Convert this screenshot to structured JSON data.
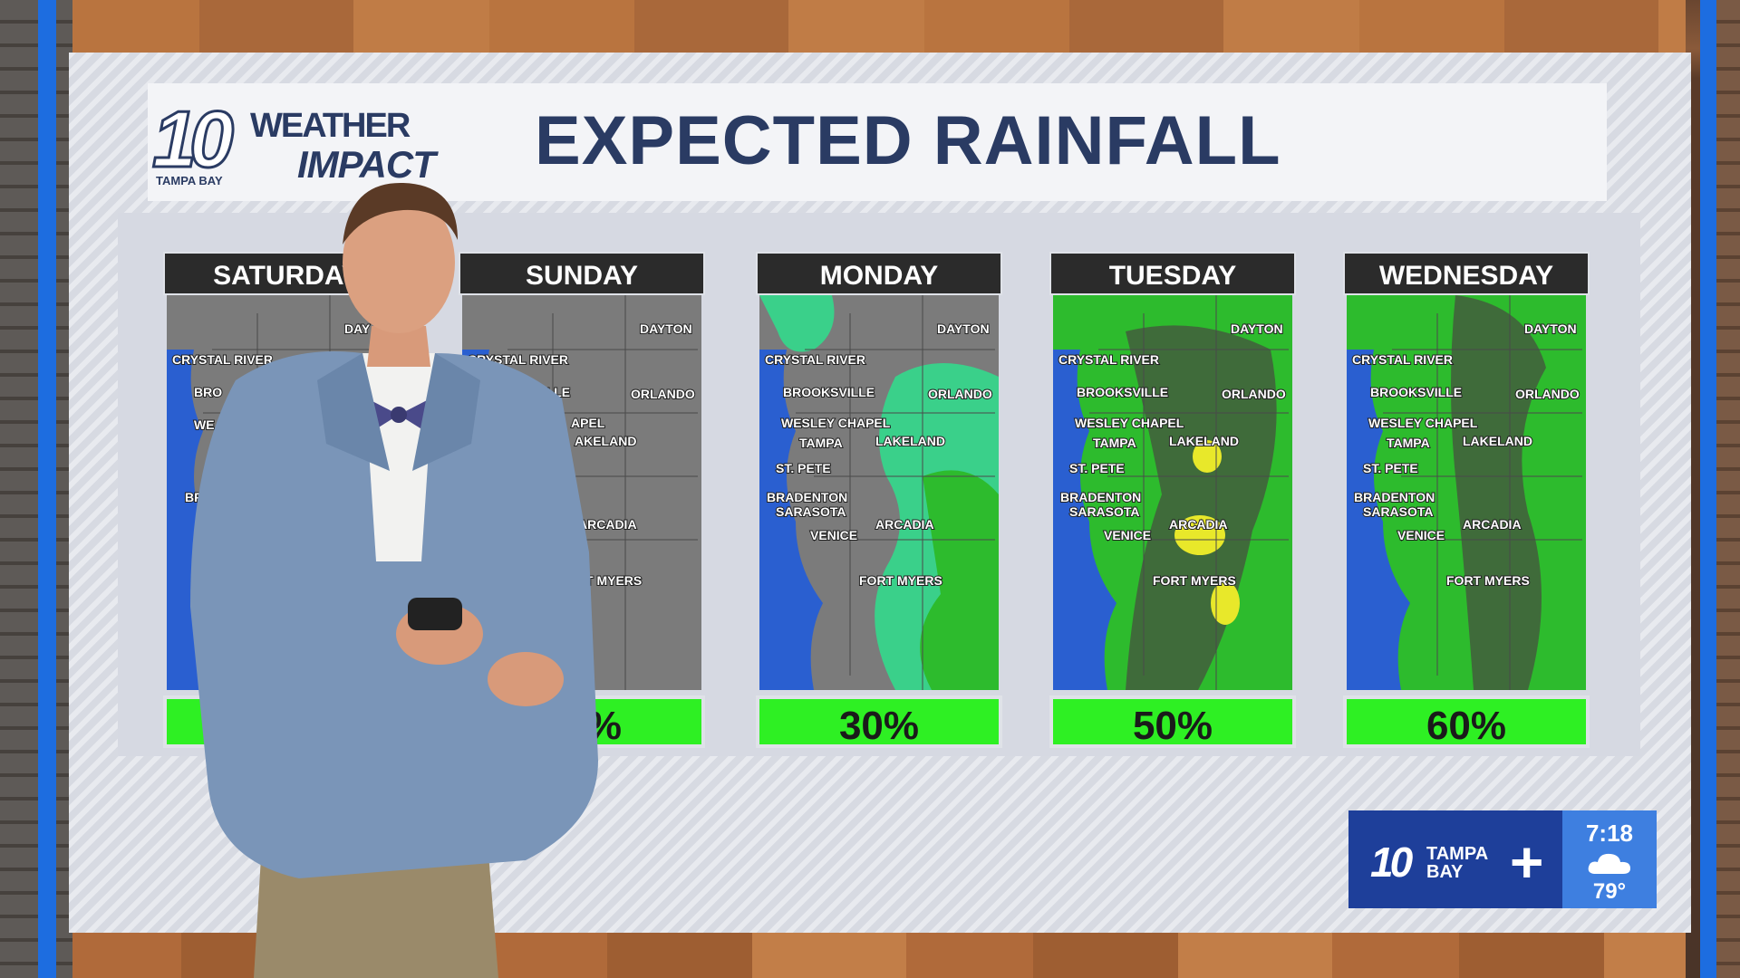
{
  "header": {
    "logo_number": "10",
    "logo_line1": "WEATHER",
    "logo_line2": "IMPACT",
    "logo_station": "TAMPA BAY",
    "title": "EXPECTED RAINFALL"
  },
  "days": [
    {
      "day": "SATURDAY",
      "chance": "",
      "cities": [
        "CRYSTAL RIVER",
        "DAY",
        "BRO",
        "WE",
        "BR"
      ]
    },
    {
      "day": "SUNDAY",
      "chance": "10%",
      "cities": [
        "DAYTON",
        "CRYSTAL RIVER",
        "KSVILLE",
        "ORLANDO",
        "APEL",
        "AKELAND",
        "ARCADIA",
        "T MYERS"
      ]
    },
    {
      "day": "MONDAY",
      "chance": "30%",
      "cities": [
        "DAYTON",
        "CRYSTAL RIVER",
        "BROOKSVILLE",
        "ORLANDO",
        "WESLEY CHAPEL",
        "TAMPA",
        "LAKELAND",
        "ST. PETE",
        "BRADENTON",
        "SARASOTA",
        "ARCADIA",
        "VENICE",
        "FORT MYERS"
      ]
    },
    {
      "day": "TUESDAY",
      "chance": "50%",
      "cities": [
        "DAYTON",
        "CRYSTAL RIVER",
        "BROOKSVILLE",
        "ORLANDO",
        "WESLEY CHAPEL",
        "TAMPA",
        "LAKELAND",
        "ST. PETE",
        "BRADENTON",
        "SARASOTA",
        "ARCADIA",
        "VENICE",
        "FORT MYERS"
      ]
    },
    {
      "day": "WEDNESDAY",
      "chance": "60%",
      "cities": [
        "DAYTON",
        "CRYSTAL RIVER",
        "BROOKSVILLE",
        "ORLANDO",
        "WESLEY CHAPEL",
        "TAMPA",
        "LAKELAND",
        "ST. PETE",
        "BRADENTON",
        "SARASOTA",
        "ARCADIA",
        "VENICE",
        "FORT MYERS"
      ]
    }
  ],
  "badge": {
    "number": "10",
    "station_line1": "TAMPA",
    "station_line2": "BAY",
    "plus": "+",
    "time": "7:18",
    "weather_icon": "cloud-icon",
    "temperature": "79°"
  },
  "colors": {
    "title_navy": "#2a3b63",
    "chance_green": "#2ef023",
    "water_blue": "#2a5fd0",
    "rain_light": "#3ad08a",
    "rain_green": "#2dbb2d",
    "rain_dark": "#3f6b3a",
    "rain_yellow": "#e8e82a",
    "frame_blue": "#1d6de0"
  }
}
